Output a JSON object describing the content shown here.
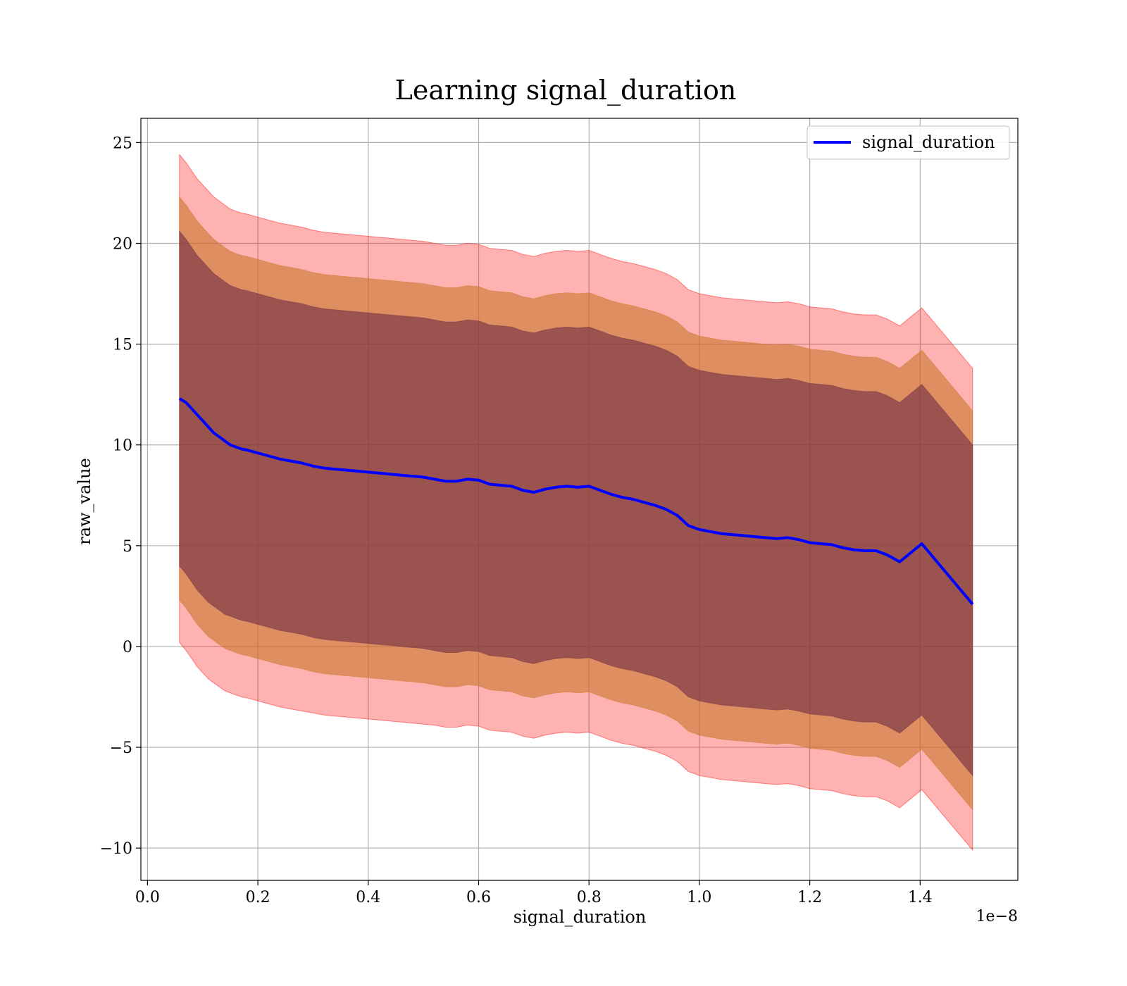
{
  "chart_data": {
    "type": "line",
    "title": "Learning signal_duration",
    "xlabel": "signal_duration",
    "ylabel": "raw_value",
    "x_offset_label": "1e−8",
    "xlim": [
      -0.012,
      1.577
    ],
    "ylim": [
      -11.6,
      26.2
    ],
    "x_ticks": [
      0.0,
      0.2,
      0.4,
      0.6,
      0.8,
      1.0,
      1.2,
      1.4
    ],
    "x_tick_labels": [
      "0.0",
      "0.2",
      "0.4",
      "0.6",
      "0.8",
      "1.0",
      "1.2",
      "1.4"
    ],
    "y_ticks": [
      -10,
      -5,
      0,
      5,
      10,
      15,
      20,
      25
    ],
    "y_tick_labels": [
      "−10",
      "−5",
      "0",
      "5",
      "10",
      "15",
      "20",
      "25"
    ],
    "grid": true,
    "legend_position": "top-right",
    "colors": {
      "line": "#0000ff",
      "band_outer": "#ff0000",
      "band_middle": "#c9772b",
      "band_inner": "#6e2c45"
    },
    "series": [
      {
        "name": "signal_duration",
        "x": [
          0.058,
          0.07,
          0.08,
          0.09,
          0.1,
          0.11,
          0.12,
          0.13,
          0.14,
          0.15,
          0.16,
          0.17,
          0.18,
          0.2,
          0.22,
          0.24,
          0.26,
          0.28,
          0.3,
          0.32,
          0.34,
          0.36,
          0.38,
          0.4,
          0.42,
          0.44,
          0.46,
          0.48,
          0.5,
          0.52,
          0.54,
          0.56,
          0.58,
          0.6,
          0.62,
          0.64,
          0.66,
          0.68,
          0.7,
          0.72,
          0.74,
          0.76,
          0.78,
          0.8,
          0.82,
          0.84,
          0.86,
          0.88,
          0.9,
          0.92,
          0.94,
          0.96,
          0.98,
          1.0,
          1.02,
          1.04,
          1.06,
          1.08,
          1.1,
          1.12,
          1.14,
          1.16,
          1.18,
          1.2,
          1.22,
          1.24,
          1.26,
          1.28,
          1.3,
          1.32,
          1.34,
          1.363,
          1.403,
          1.495
        ],
        "values": [
          12.3,
          12.1,
          11.8,
          11.5,
          11.2,
          10.9,
          10.6,
          10.4,
          10.2,
          10.0,
          9.9,
          9.8,
          9.75,
          9.6,
          9.45,
          9.3,
          9.2,
          9.1,
          8.95,
          8.85,
          8.8,
          8.75,
          8.7,
          8.65,
          8.6,
          8.55,
          8.5,
          8.45,
          8.4,
          8.3,
          8.2,
          8.2,
          8.3,
          8.25,
          8.05,
          8.0,
          7.95,
          7.75,
          7.65,
          7.8,
          7.9,
          7.95,
          7.9,
          7.95,
          7.75,
          7.55,
          7.4,
          7.3,
          7.15,
          7.0,
          6.8,
          6.5,
          6.0,
          5.8,
          5.7,
          5.6,
          5.55,
          5.5,
          5.45,
          5.4,
          5.35,
          5.4,
          5.3,
          5.15,
          5.1,
          5.05,
          4.9,
          4.8,
          4.75,
          4.75,
          4.55,
          4.2,
          5.1,
          2.1
        ]
      }
    ],
    "bands": [
      {
        "level": "outer",
        "lower": [
          0.2,
          -0.2,
          -0.6,
          -1.0,
          -1.3,
          -1.6,
          -1.8,
          -2.0,
          -2.2,
          -2.3,
          -2.4,
          -2.5,
          -2.55,
          -2.7,
          -2.85,
          -3.0,
          -3.1,
          -3.2,
          -3.3,
          -3.4,
          -3.45,
          -3.5,
          -3.55,
          -3.6,
          -3.65,
          -3.7,
          -3.75,
          -3.8,
          -3.85,
          -3.9,
          -4.0,
          -4.0,
          -3.9,
          -3.95,
          -4.15,
          -4.2,
          -4.25,
          -4.45,
          -4.55,
          -4.4,
          -4.3,
          -4.25,
          -4.3,
          -4.25,
          -4.45,
          -4.65,
          -4.8,
          -4.9,
          -5.05,
          -5.2,
          -5.4,
          -5.7,
          -6.2,
          -6.4,
          -6.5,
          -6.6,
          -6.65,
          -6.7,
          -6.75,
          -6.8,
          -6.85,
          -6.8,
          -6.9,
          -7.05,
          -7.1,
          -7.15,
          -7.3,
          -7.4,
          -7.45,
          -7.45,
          -7.65,
          -8.0,
          -7.1,
          -10.1
        ],
        "upper": [
          24.4,
          24.0,
          23.6,
          23.2,
          22.9,
          22.6,
          22.3,
          22.1,
          21.9,
          21.7,
          21.6,
          21.5,
          21.45,
          21.3,
          21.15,
          21.0,
          20.9,
          20.8,
          20.65,
          20.55,
          20.5,
          20.45,
          20.4,
          20.35,
          20.3,
          20.25,
          20.2,
          20.15,
          20.1,
          20.0,
          19.9,
          19.9,
          20.0,
          19.95,
          19.75,
          19.7,
          19.65,
          19.45,
          19.35,
          19.5,
          19.6,
          19.65,
          19.6,
          19.65,
          19.45,
          19.25,
          19.1,
          19.0,
          18.85,
          18.7,
          18.5,
          18.2,
          17.7,
          17.5,
          17.4,
          17.3,
          17.25,
          17.2,
          17.15,
          17.1,
          17.05,
          17.1,
          17.0,
          16.85,
          16.8,
          16.75,
          16.6,
          16.5,
          16.45,
          16.45,
          16.25,
          15.9,
          16.8,
          13.8
        ]
      },
      {
        "level": "middle",
        "lower": [
          2.3,
          1.9,
          1.5,
          1.1,
          0.8,
          0.5,
          0.3,
          0.1,
          -0.1,
          -0.2,
          -0.3,
          -0.4,
          -0.45,
          -0.6,
          -0.75,
          -0.9,
          -1.0,
          -1.1,
          -1.25,
          -1.35,
          -1.4,
          -1.45,
          -1.5,
          -1.55,
          -1.6,
          -1.65,
          -1.7,
          -1.75,
          -1.8,
          -1.9,
          -2.0,
          -2.0,
          -1.9,
          -1.95,
          -2.15,
          -2.2,
          -2.25,
          -2.45,
          -2.55,
          -2.4,
          -2.3,
          -2.25,
          -2.3,
          -2.25,
          -2.45,
          -2.65,
          -2.8,
          -2.9,
          -3.05,
          -3.2,
          -3.4,
          -3.7,
          -4.2,
          -4.4,
          -4.5,
          -4.6,
          -4.65,
          -4.7,
          -4.75,
          -4.8,
          -4.85,
          -4.8,
          -4.9,
          -5.05,
          -5.1,
          -5.15,
          -5.3,
          -5.4,
          -5.45,
          -5.45,
          -5.65,
          -6.0,
          -5.1,
          -8.1
        ],
        "upper": [
          22.3,
          21.9,
          21.5,
          21.1,
          20.8,
          20.5,
          20.2,
          20.0,
          19.8,
          19.6,
          19.5,
          19.4,
          19.35,
          19.2,
          19.05,
          18.9,
          18.8,
          18.7,
          18.55,
          18.45,
          18.4,
          18.35,
          18.3,
          18.25,
          18.2,
          18.15,
          18.1,
          18.05,
          18.0,
          17.9,
          17.8,
          17.8,
          17.9,
          17.85,
          17.65,
          17.6,
          17.55,
          17.35,
          17.25,
          17.4,
          17.5,
          17.55,
          17.5,
          17.55,
          17.35,
          17.15,
          17.0,
          16.9,
          16.75,
          16.6,
          16.4,
          16.1,
          15.6,
          15.4,
          15.3,
          15.2,
          15.15,
          15.1,
          15.05,
          15.0,
          14.95,
          15.0,
          14.9,
          14.75,
          14.7,
          14.65,
          14.5,
          14.4,
          14.35,
          14.35,
          14.15,
          13.8,
          14.7,
          11.7
        ]
      },
      {
        "level": "inner",
        "lower": [
          4.0,
          3.6,
          3.2,
          2.8,
          2.5,
          2.2,
          2.0,
          1.8,
          1.6,
          1.5,
          1.4,
          1.3,
          1.25,
          1.1,
          0.95,
          0.8,
          0.7,
          0.6,
          0.45,
          0.35,
          0.3,
          0.25,
          0.2,
          0.15,
          0.1,
          0.05,
          0.0,
          -0.05,
          -0.1,
          -0.2,
          -0.3,
          -0.3,
          -0.2,
          -0.25,
          -0.45,
          -0.5,
          -0.55,
          -0.75,
          -0.85,
          -0.7,
          -0.6,
          -0.55,
          -0.6,
          -0.55,
          -0.75,
          -0.95,
          -1.1,
          -1.2,
          -1.35,
          -1.5,
          -1.7,
          -2.0,
          -2.5,
          -2.7,
          -2.8,
          -2.9,
          -2.95,
          -3.0,
          -3.05,
          -3.1,
          -3.15,
          -3.1,
          -3.2,
          -3.35,
          -3.4,
          -3.45,
          -3.6,
          -3.7,
          -3.75,
          -3.75,
          -3.95,
          -4.3,
          -3.4,
          -6.4
        ],
        "upper": [
          20.6,
          20.2,
          19.8,
          19.4,
          19.1,
          18.8,
          18.5,
          18.3,
          18.1,
          17.9,
          17.8,
          17.7,
          17.65,
          17.5,
          17.35,
          17.2,
          17.1,
          17.0,
          16.85,
          16.75,
          16.7,
          16.65,
          16.6,
          16.55,
          16.5,
          16.45,
          16.4,
          16.35,
          16.3,
          16.2,
          16.1,
          16.1,
          16.2,
          16.15,
          15.95,
          15.9,
          15.85,
          15.65,
          15.55,
          15.7,
          15.8,
          15.85,
          15.8,
          15.85,
          15.65,
          15.45,
          15.3,
          15.2,
          15.05,
          14.9,
          14.7,
          14.4,
          13.9,
          13.7,
          13.6,
          13.5,
          13.45,
          13.4,
          13.35,
          13.3,
          13.25,
          13.3,
          13.2,
          13.05,
          13.0,
          12.95,
          12.8,
          12.7,
          12.65,
          12.65,
          12.45,
          12.1,
          13.0,
          10.0
        ]
      }
    ]
  }
}
